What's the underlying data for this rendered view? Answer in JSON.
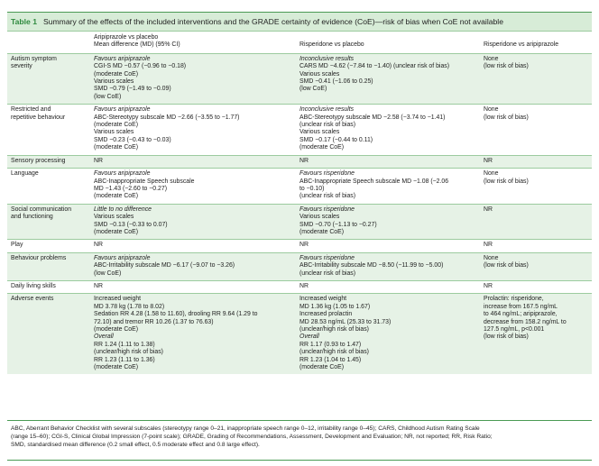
{
  "table": {
    "number": "Table 1",
    "title": "Summary of the effects of the included interventions and the GRADE certainty of evidence (CoE)—risk of bias when CoE not available",
    "headers": {
      "outcome": "",
      "aripiprazole_line1": "Aripiprazole vs placebo",
      "aripiprazole_line2": "Mean difference (MD) (95% CI)",
      "risperidone": "Risperidone vs placebo",
      "risp_vs_arip": "Risperidone vs aripiprazole"
    },
    "rows": [
      {
        "outcome": [
          "Autism symptom",
          "severity"
        ],
        "aripiprazole": [
          {
            "text": "Favours aripiprazole",
            "italic": true
          },
          {
            "text": "CGI-S MD −0.57 (−0.96 to −0.18)"
          },
          {
            "text": "(moderate CoE)"
          },
          {
            "text": "Various scales"
          },
          {
            "text": "SMD −0.79 (−1.49 to −0.09)"
          },
          {
            "text": "(low CoE)"
          }
        ],
        "risperidone": [
          {
            "text": "Inconclusive results",
            "italic": true
          },
          {
            "text": "CARS MD −4.62 (−7.84 to −1.40) (unclear risk of bias)"
          },
          {
            "text": "Various scales"
          },
          {
            "text": "SMD −0.41 (−1.06 to 0.25)"
          },
          {
            "text": "(low CoE)"
          }
        ],
        "comparison": [
          {
            "text": "None"
          },
          {
            "text": "(low risk of bias)"
          }
        ]
      },
      {
        "outcome": [
          "Restricted and",
          "repetitive behaviour"
        ],
        "aripiprazole": [
          {
            "text": "Favours aripiprazole",
            "italic": true
          },
          {
            "text": "ABC-Stereotypy subscale MD −2.66 (−3.55 to −1.77)"
          },
          {
            "text": "(moderate CoE)"
          },
          {
            "text": "Various scales"
          },
          {
            "text": "SMD −0.23 (−0.43 to −0.03)"
          },
          {
            "text": "(moderate CoE)"
          }
        ],
        "risperidone": [
          {
            "text": "Inconclusive results",
            "italic": true
          },
          {
            "text": "ABC-Stereotypy subscale MD −2.58 (−3.74 to −1.41)"
          },
          {
            "text": "(unclear risk of bias)"
          },
          {
            "text": "Various scales"
          },
          {
            "text": "SMD −0.17 (−0.44 to 0.11)"
          },
          {
            "text": "(moderate CoE)"
          }
        ],
        "comparison": [
          {
            "text": "None"
          },
          {
            "text": "(low risk of bias)"
          }
        ]
      },
      {
        "outcome": [
          "Sensory processing"
        ],
        "aripiprazole": [
          {
            "text": "NR"
          }
        ],
        "risperidone": [
          {
            "text": "NR"
          }
        ],
        "comparison": [
          {
            "text": "NR"
          }
        ]
      },
      {
        "outcome": [
          "Language"
        ],
        "aripiprazole": [
          {
            "text": "Favours aripiprazole",
            "italic": true
          },
          {
            "text": "ABC-Inappropriate Speech subscale"
          },
          {
            "text": "MD −1.43 (−2.60 to −0.27)"
          },
          {
            "text": "(moderate CoE)"
          }
        ],
        "risperidone": [
          {
            "text": "Favours risperidone",
            "italic": true
          },
          {
            "text": "ABC-Inappropriate Speech subscale MD −1.08 (−2.06"
          },
          {
            "text": "to −0.10)"
          },
          {
            "text": "(unclear risk of bias)"
          }
        ],
        "comparison": [
          {
            "text": "None"
          },
          {
            "text": "(low risk of bias)"
          }
        ]
      },
      {
        "outcome": [
          "Social communication",
          "and functioning"
        ],
        "aripiprazole": [
          {
            "text": "Little to no difference",
            "italic": true
          },
          {
            "text": "Various scales"
          },
          {
            "text": "SMD −0.13 (−0.33 to 0.07)"
          },
          {
            "text": "(moderate CoE)"
          }
        ],
        "risperidone": [
          {
            "text": "Favours risperidone",
            "italic": true
          },
          {
            "text": "Various scales"
          },
          {
            "text": "SMD −0.70 (−1.13 to −0.27)"
          },
          {
            "text": "(moderate CoE)"
          }
        ],
        "comparison": [
          {
            "text": "NR"
          }
        ]
      },
      {
        "outcome": [
          "Play"
        ],
        "aripiprazole": [
          {
            "text": "NR"
          }
        ],
        "risperidone": [
          {
            "text": "NR"
          }
        ],
        "comparison": [
          {
            "text": "NR"
          }
        ]
      },
      {
        "outcome": [
          "Behaviour problems"
        ],
        "aripiprazole": [
          {
            "text": "Favours aripiprazole",
            "italic": true
          },
          {
            "text": "ABC-Irritability subscale MD −6.17 (−9.07 to −3.26)"
          },
          {
            "text": "(low CoE)"
          }
        ],
        "risperidone": [
          {
            "text": "Favours risperidone",
            "italic": true
          },
          {
            "text": "ABC-Irritability subscale MD −8.50 (−11.99 to −5.00)"
          },
          {
            "text": "(unclear risk of bias)"
          }
        ],
        "comparison": [
          {
            "text": "None"
          },
          {
            "text": "(low risk of bias)"
          }
        ]
      },
      {
        "outcome": [
          "Daily living skills"
        ],
        "aripiprazole": [
          {
            "text": "NR"
          }
        ],
        "risperidone": [
          {
            "text": "NR"
          }
        ],
        "comparison": [
          {
            "text": "NR"
          }
        ]
      },
      {
        "outcome": [
          "Adverse events"
        ],
        "aripiprazole": [
          {
            "text": "Increased weight"
          },
          {
            "text": "MD 3.78 kg (1.78 to 8.02)"
          },
          {
            "text": "Sedation RR 4.28 (1.58 to 11.60), drooling RR 9.64 (1.29 to"
          },
          {
            "text": "72.10) and tremor RR 10.26 (1.37 to 76.63)"
          },
          {
            "text": "(moderate CoE)"
          },
          {
            "text": "Overall",
            "italic": true
          },
          {
            "text": "RR 1.24 (1.11 to 1.38)"
          },
          {
            "text": "(unclear/high risk of bias)"
          },
          {
            "text": "RR 1.23 (1.11 to 1.36)"
          },
          {
            "text": "(moderate CoE)"
          }
        ],
        "risperidone": [
          {
            "text": "Increased weight"
          },
          {
            "text": "MD 1.36 kg (1.05 to 1.67)"
          },
          {
            "text": "Increased prolactin"
          },
          {
            "text": "MD 28.53 ng/mL (25.33 to 31.73)"
          },
          {
            "text": "(unclear/high risk of bias)"
          },
          {
            "text": "Overall",
            "italic": true
          },
          {
            "text": "RR 1.17 (0.93 to 1.47)"
          },
          {
            "text": "(unclear/high risk of bias)"
          },
          {
            "text": "RR 1.23 (1.04 to 1.45)"
          },
          {
            "text": "(moderate CoE)"
          }
        ],
        "comparison": [
          {
            "text": "Prolactin: risperidone,"
          },
          {
            "text": "increase from 167.5 ng/mL"
          },
          {
            "text": "to 464 ng/mL; aripiprazole,"
          },
          {
            "text": "decrease from 158.2 ng/mL to"
          },
          {
            "text": "127.5 ng/mL, p<0.001"
          },
          {
            "text": "(low risk of bias)"
          }
        ]
      }
    ],
    "footnote": [
      "ABC, Aberrant Behavior Checklist with several subscales (stereotypy range 0–21, inappropriate speech range 0–12, irritability range 0–45); CARS, Childhood Autism Rating Scale",
      "(range 15–60); CGI-S, Clinical Global Impression (7-point scale); GRADE, Grading of Recommendations, Assessment, Development and Evaluation; NR, not reported; RR, Risk Ratio;",
      "SMD, standardised mean difference (0.2 small effect, 0.5 moderate effect and 0.8 large effect)."
    ]
  }
}
